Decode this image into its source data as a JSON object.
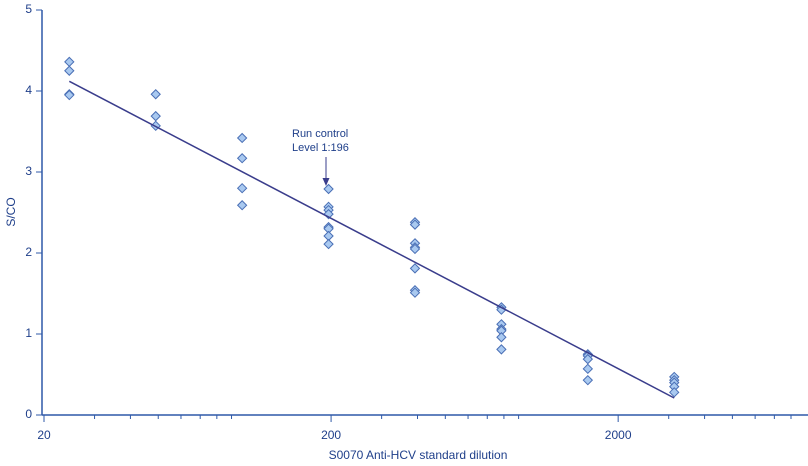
{
  "chart_data": {
    "type": "scatter",
    "x_label": "S0070 Anti-HCV standard dilution",
    "y_label": "S/CO",
    "log_x": true,
    "xlim": [
      20,
      8000
    ],
    "xticks": [
      20,
      200,
      2000
    ],
    "xminorticks": [
      30,
      40,
      50,
      60,
      70,
      80,
      90,
      300,
      400,
      500,
      600,
      700,
      800,
      900,
      3000,
      4000,
      5000,
      6000,
      7000,
      8000
    ],
    "ylim": [
      0,
      5
    ],
    "yticks": [
      0,
      1,
      2,
      3,
      4,
      5
    ],
    "grid": false,
    "series": [
      {
        "color": "#a9c9f0",
        "x": [
          24.5,
          24.5,
          24.5,
          24.5,
          49,
          49,
          49,
          98,
          98,
          98,
          98,
          196,
          196,
          196,
          196,
          196,
          196,
          196,
          196,
          392,
          392,
          392,
          392,
          392,
          392,
          392,
          392,
          784,
          784,
          784,
          784,
          784,
          784,
          784,
          1568,
          1568,
          1568,
          1568,
          1568,
          3136,
          3136,
          3136,
          3136,
          3136
        ],
        "values": [
          4.36,
          4.25,
          3.96,
          3.95,
          3.96,
          3.69,
          3.57,
          3.42,
          3.17,
          2.8,
          2.59,
          2.79,
          2.57,
          2.53,
          2.48,
          2.32,
          2.3,
          2.21,
          2.11,
          2.38,
          2.35,
          2.12,
          2.07,
          2.05,
          1.81,
          1.54,
          1.51,
          1.33,
          1.3,
          1.12,
          1.06,
          1.04,
          0.96,
          0.81,
          0.75,
          0.73,
          0.69,
          0.57,
          0.43,
          0.47,
          0.43,
          0.4,
          0.35,
          0.28
        ]
      }
    ],
    "trendline": {
      "color": "#3a3d8c",
      "x": [
        24.5,
        3136
      ],
      "values": [
        4.12,
        0.21
      ]
    },
    "annotation": [
      "Run control",
      "Level 1:196"
    ]
  }
}
